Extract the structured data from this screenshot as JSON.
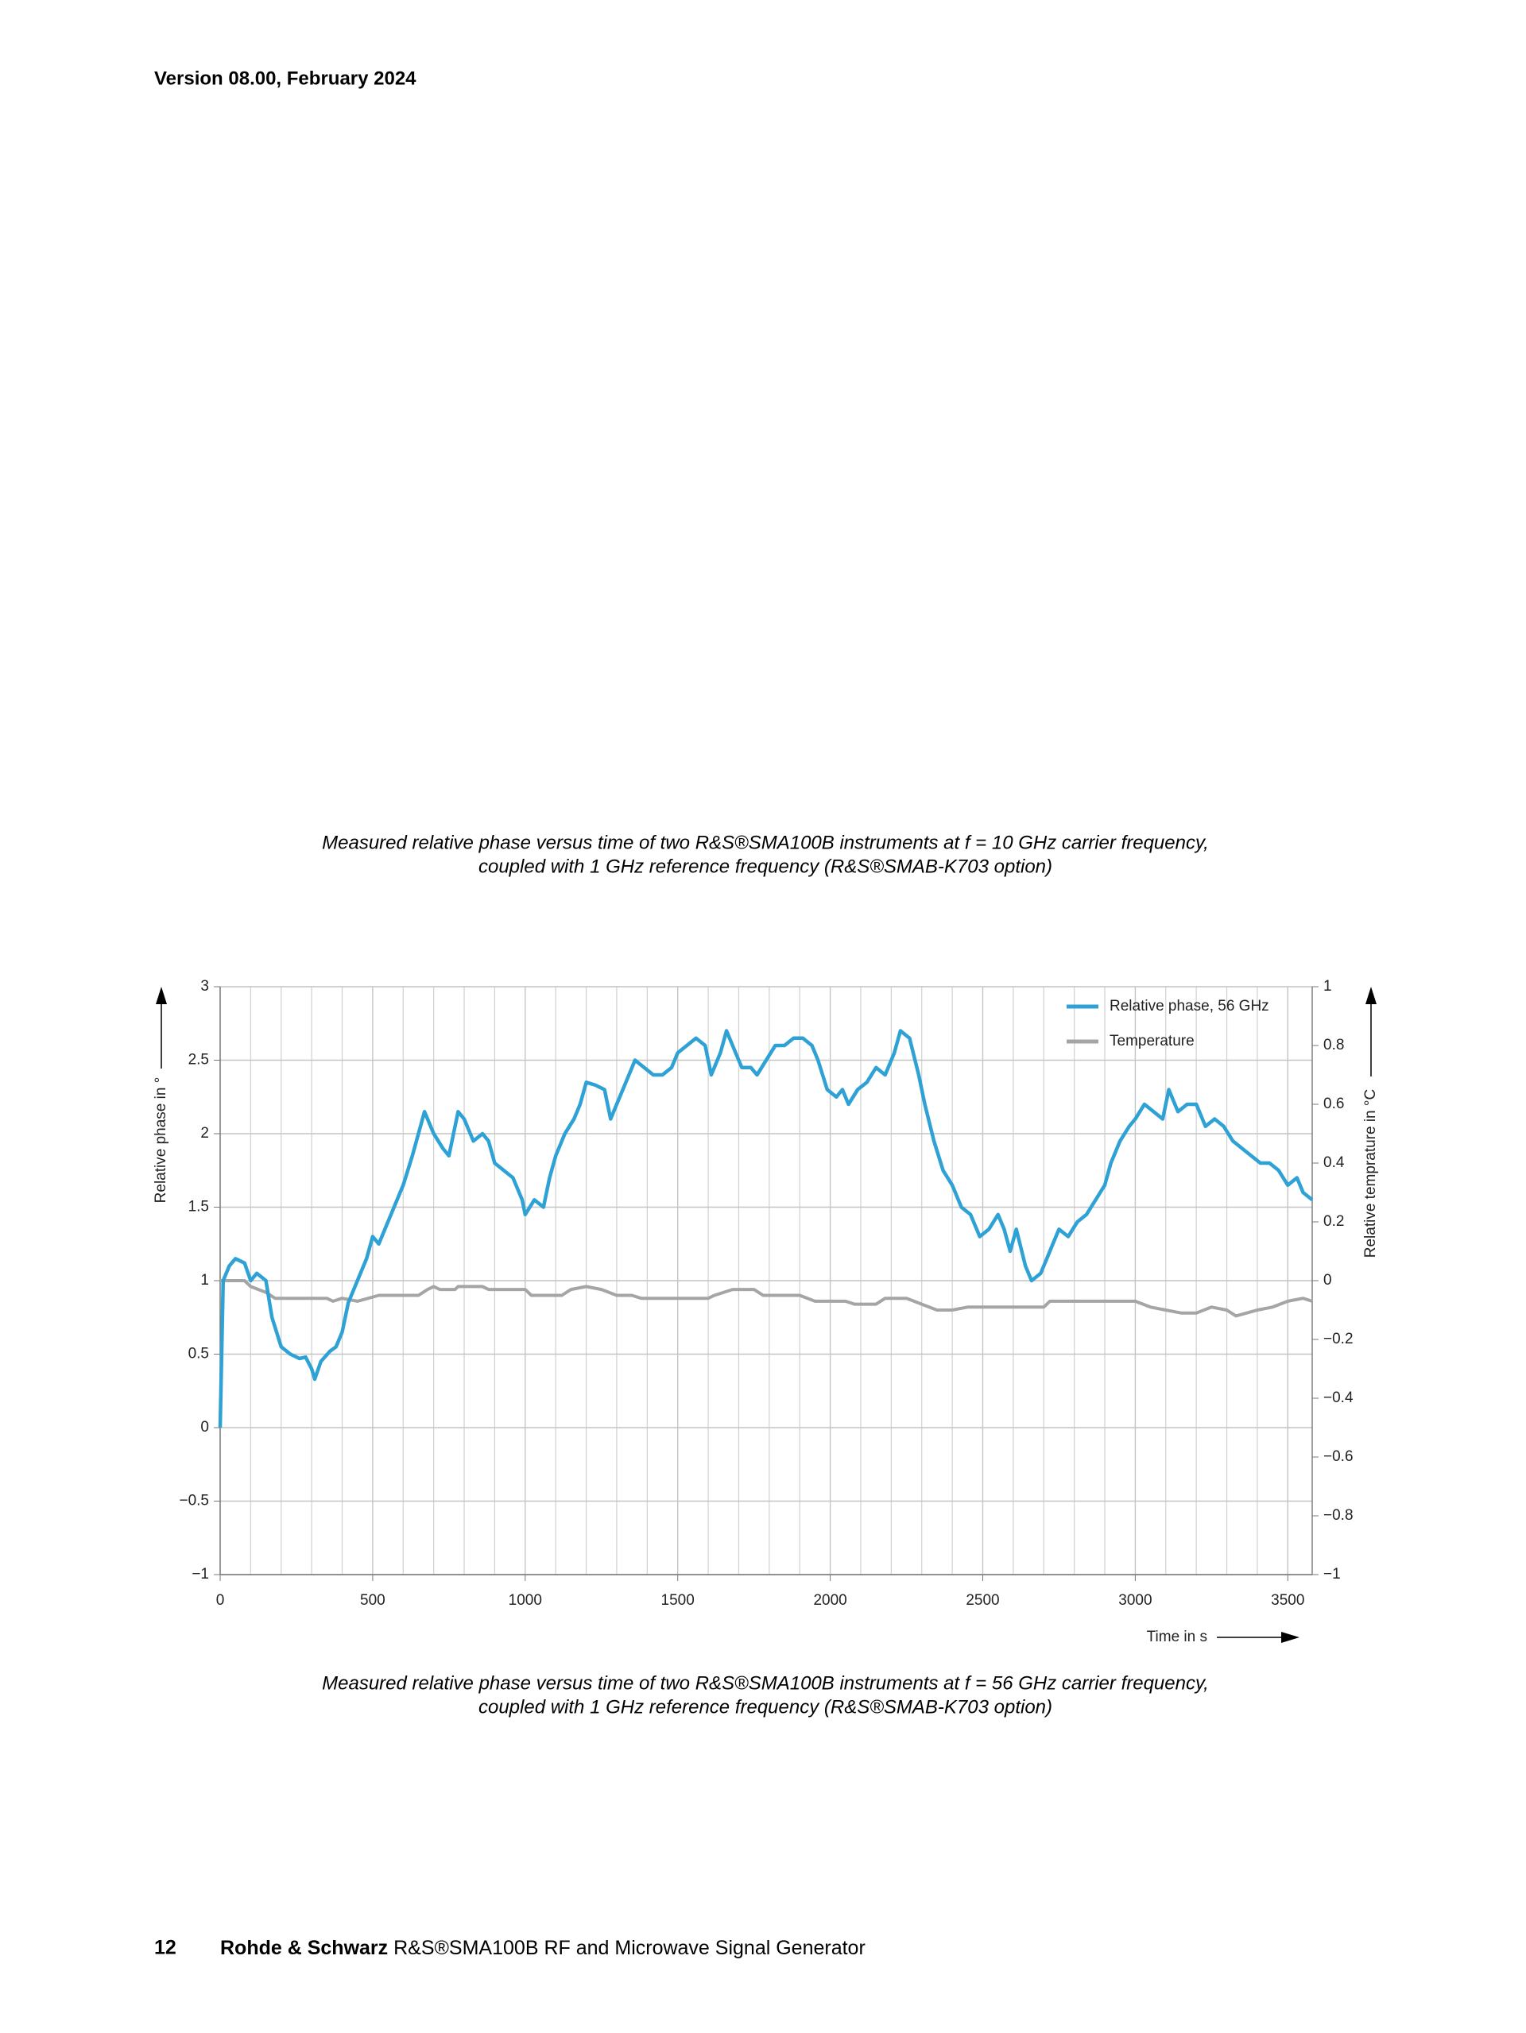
{
  "header": {
    "version": "Version 08.00, February 2024"
  },
  "captions": [
    [
      "Measured relative phase versus time of two R&S®SMA100B instruments at f = 10 GHz carrier frequency,",
      "coupled with 1 GHz reference frequency (R&S®SMAB-K703 option)"
    ],
    [
      "Measured relative phase versus time of two R&S®SMA100B instruments at f = 56 GHz carrier frequency,",
      "coupled with 1 GHz reference frequency (R&S®SMAB-K703 option)"
    ]
  ],
  "chart_data": {
    "type": "line",
    "xlabel": "Time in s",
    "ylabel": "Relative phase in °",
    "y2label": "Relative temprature in °C",
    "xlim": [
      0,
      3580
    ],
    "xticks": [
      0,
      500,
      1000,
      1500,
      2000,
      2500,
      3000,
      3500
    ],
    "xgrid": [
      100,
      200,
      300,
      400,
      600,
      700,
      800,
      900,
      1100,
      1200,
      1300,
      1400,
      1600,
      1700,
      1800,
      1900,
      2100,
      2200,
      2300,
      2400,
      2600,
      2700,
      2800,
      2900,
      3100,
      3200,
      3300,
      3400
    ],
    "ylim": [
      -1,
      3
    ],
    "yticks": [
      {
        "value": -1,
        "label": "−1"
      },
      {
        "value": -0.5,
        "label": "−0.5"
      },
      0,
      0.5,
      1,
      1.5,
      2,
      2.5,
      3
    ],
    "y2lim": [
      -1,
      1
    ],
    "y2ticks": [
      {
        "value": -1,
        "label": "−1"
      },
      {
        "value": -0.8,
        "label": "−0.8"
      },
      {
        "value": -0.6,
        "label": "−0.6"
      },
      {
        "value": -0.4,
        "label": "−0.4"
      },
      {
        "value": -0.2,
        "label": "−0.2"
      },
      0,
      0.2,
      0.4,
      0.6,
      0.8,
      1
    ],
    "grid": true,
    "legend": "upper right",
    "series": [
      {
        "name": "Relative phase, 56 GHz",
        "color": "#2ea1d5",
        "x": [
          0,
          10,
          30,
          50,
          80,
          100,
          120,
          150,
          170,
          200,
          230,
          260,
          280,
          300,
          310,
          330,
          360,
          380,
          400,
          420,
          450,
          480,
          500,
          520,
          550,
          580,
          600,
          630,
          650,
          670,
          700,
          730,
          750,
          780,
          800,
          830,
          860,
          880,
          900,
          930,
          960,
          990,
          1000,
          1030,
          1060,
          1080,
          1100,
          1130,
          1160,
          1180,
          1200,
          1230,
          1260,
          1280,
          1300,
          1330,
          1360,
          1390,
          1420,
          1450,
          1480,
          1500,
          1530,
          1560,
          1590,
          1610,
          1640,
          1660,
          1690,
          1710,
          1740,
          1760,
          1790,
          1820,
          1850,
          1880,
          1910,
          1940,
          1960,
          1990,
          2020,
          2040,
          2060,
          2090,
          2120,
          2150,
          2180,
          2210,
          2230,
          2260,
          2290,
          2310,
          2340,
          2370,
          2400,
          2430,
          2460,
          2490,
          2520,
          2550,
          2570,
          2590,
          2610,
          2640,
          2660,
          2690,
          2720,
          2750,
          2780,
          2810,
          2840,
          2870,
          2900,
          2920,
          2950,
          2980,
          3000,
          3030,
          3060,
          3090,
          3110,
          3140,
          3170,
          3200,
          3230,
          3260,
          3290,
          3320,
          3350,
          3380,
          3410,
          3440,
          3470,
          3500,
          3530,
          3550,
          3580
        ],
        "values": [
          0,
          1.0,
          1.1,
          1.15,
          1.12,
          1.0,
          1.05,
          1.0,
          0.75,
          0.55,
          0.5,
          0.47,
          0.48,
          0.4,
          0.33,
          0.45,
          0.52,
          0.55,
          0.65,
          0.85,
          1.0,
          1.15,
          1.3,
          1.25,
          1.4,
          1.55,
          1.65,
          1.85,
          2.0,
          2.15,
          2.0,
          1.9,
          1.85,
          2.15,
          2.1,
          1.95,
          2.0,
          1.95,
          1.8,
          1.75,
          1.7,
          1.55,
          1.45,
          1.55,
          1.5,
          1.7,
          1.85,
          2.0,
          2.1,
          2.2,
          2.35,
          2.33,
          2.3,
          2.1,
          2.2,
          2.35,
          2.5,
          2.45,
          2.4,
          2.4,
          2.45,
          2.55,
          2.6,
          2.65,
          2.6,
          2.4,
          2.55,
          2.7,
          2.55,
          2.45,
          2.45,
          2.4,
          2.5,
          2.6,
          2.6,
          2.65,
          2.65,
          2.6,
          2.5,
          2.3,
          2.25,
          2.3,
          2.2,
          2.3,
          2.35,
          2.45,
          2.4,
          2.55,
          2.7,
          2.65,
          2.4,
          2.2,
          1.95,
          1.75,
          1.65,
          1.5,
          1.45,
          1.3,
          1.35,
          1.45,
          1.35,
          1.2,
          1.35,
          1.1,
          1.0,
          1.05,
          1.2,
          1.35,
          1.3,
          1.4,
          1.45,
          1.55,
          1.65,
          1.8,
          1.95,
          2.05,
          2.1,
          2.2,
          2.15,
          2.1,
          2.3,
          2.15,
          2.2,
          2.2,
          2.05,
          2.1,
          2.05,
          1.95,
          1.9,
          1.85,
          1.8,
          1.8,
          1.75,
          1.65,
          1.7,
          1.6,
          1.55
        ]
      },
      {
        "name": "Temperature",
        "color": "#a5a5a5",
        "axis": "y2",
        "x": [
          0,
          80,
          100,
          150,
          180,
          350,
          370,
          400,
          450,
          520,
          650,
          680,
          700,
          720,
          770,
          780,
          860,
          880,
          1000,
          1020,
          1120,
          1150,
          1200,
          1250,
          1300,
          1350,
          1380,
          1600,
          1620,
          1680,
          1750,
          1780,
          1900,
          1950,
          2050,
          2080,
          2150,
          2180,
          2250,
          2300,
          2350,
          2400,
          2450,
          2700,
          2720,
          3000,
          3050,
          3100,
          3150,
          3200,
          3250,
          3300,
          3330,
          3400,
          3450,
          3500,
          3550,
          3580
        ],
        "values": [
          0,
          0,
          -0.02,
          -0.04,
          -0.06,
          -0.06,
          -0.07,
          -0.06,
          -0.07,
          -0.05,
          -0.05,
          -0.03,
          -0.02,
          -0.03,
          -0.03,
          -0.02,
          -0.02,
          -0.03,
          -0.03,
          -0.05,
          -0.05,
          -0.03,
          -0.02,
          -0.03,
          -0.05,
          -0.05,
          -0.06,
          -0.06,
          -0.05,
          -0.03,
          -0.03,
          -0.05,
          -0.05,
          -0.07,
          -0.07,
          -0.08,
          -0.08,
          -0.06,
          -0.06,
          -0.08,
          -0.1,
          -0.1,
          -0.09,
          -0.09,
          -0.07,
          -0.07,
          -0.09,
          -0.1,
          -0.11,
          -0.11,
          -0.09,
          -0.1,
          -0.12,
          -0.1,
          -0.09,
          -0.07,
          -0.06,
          -0.07
        ]
      }
    ]
  },
  "footer": {
    "page": "12",
    "brand": "Rohde & Schwarz",
    "product": "R&S®SMA100B RF and Microwave Signal Generator"
  }
}
